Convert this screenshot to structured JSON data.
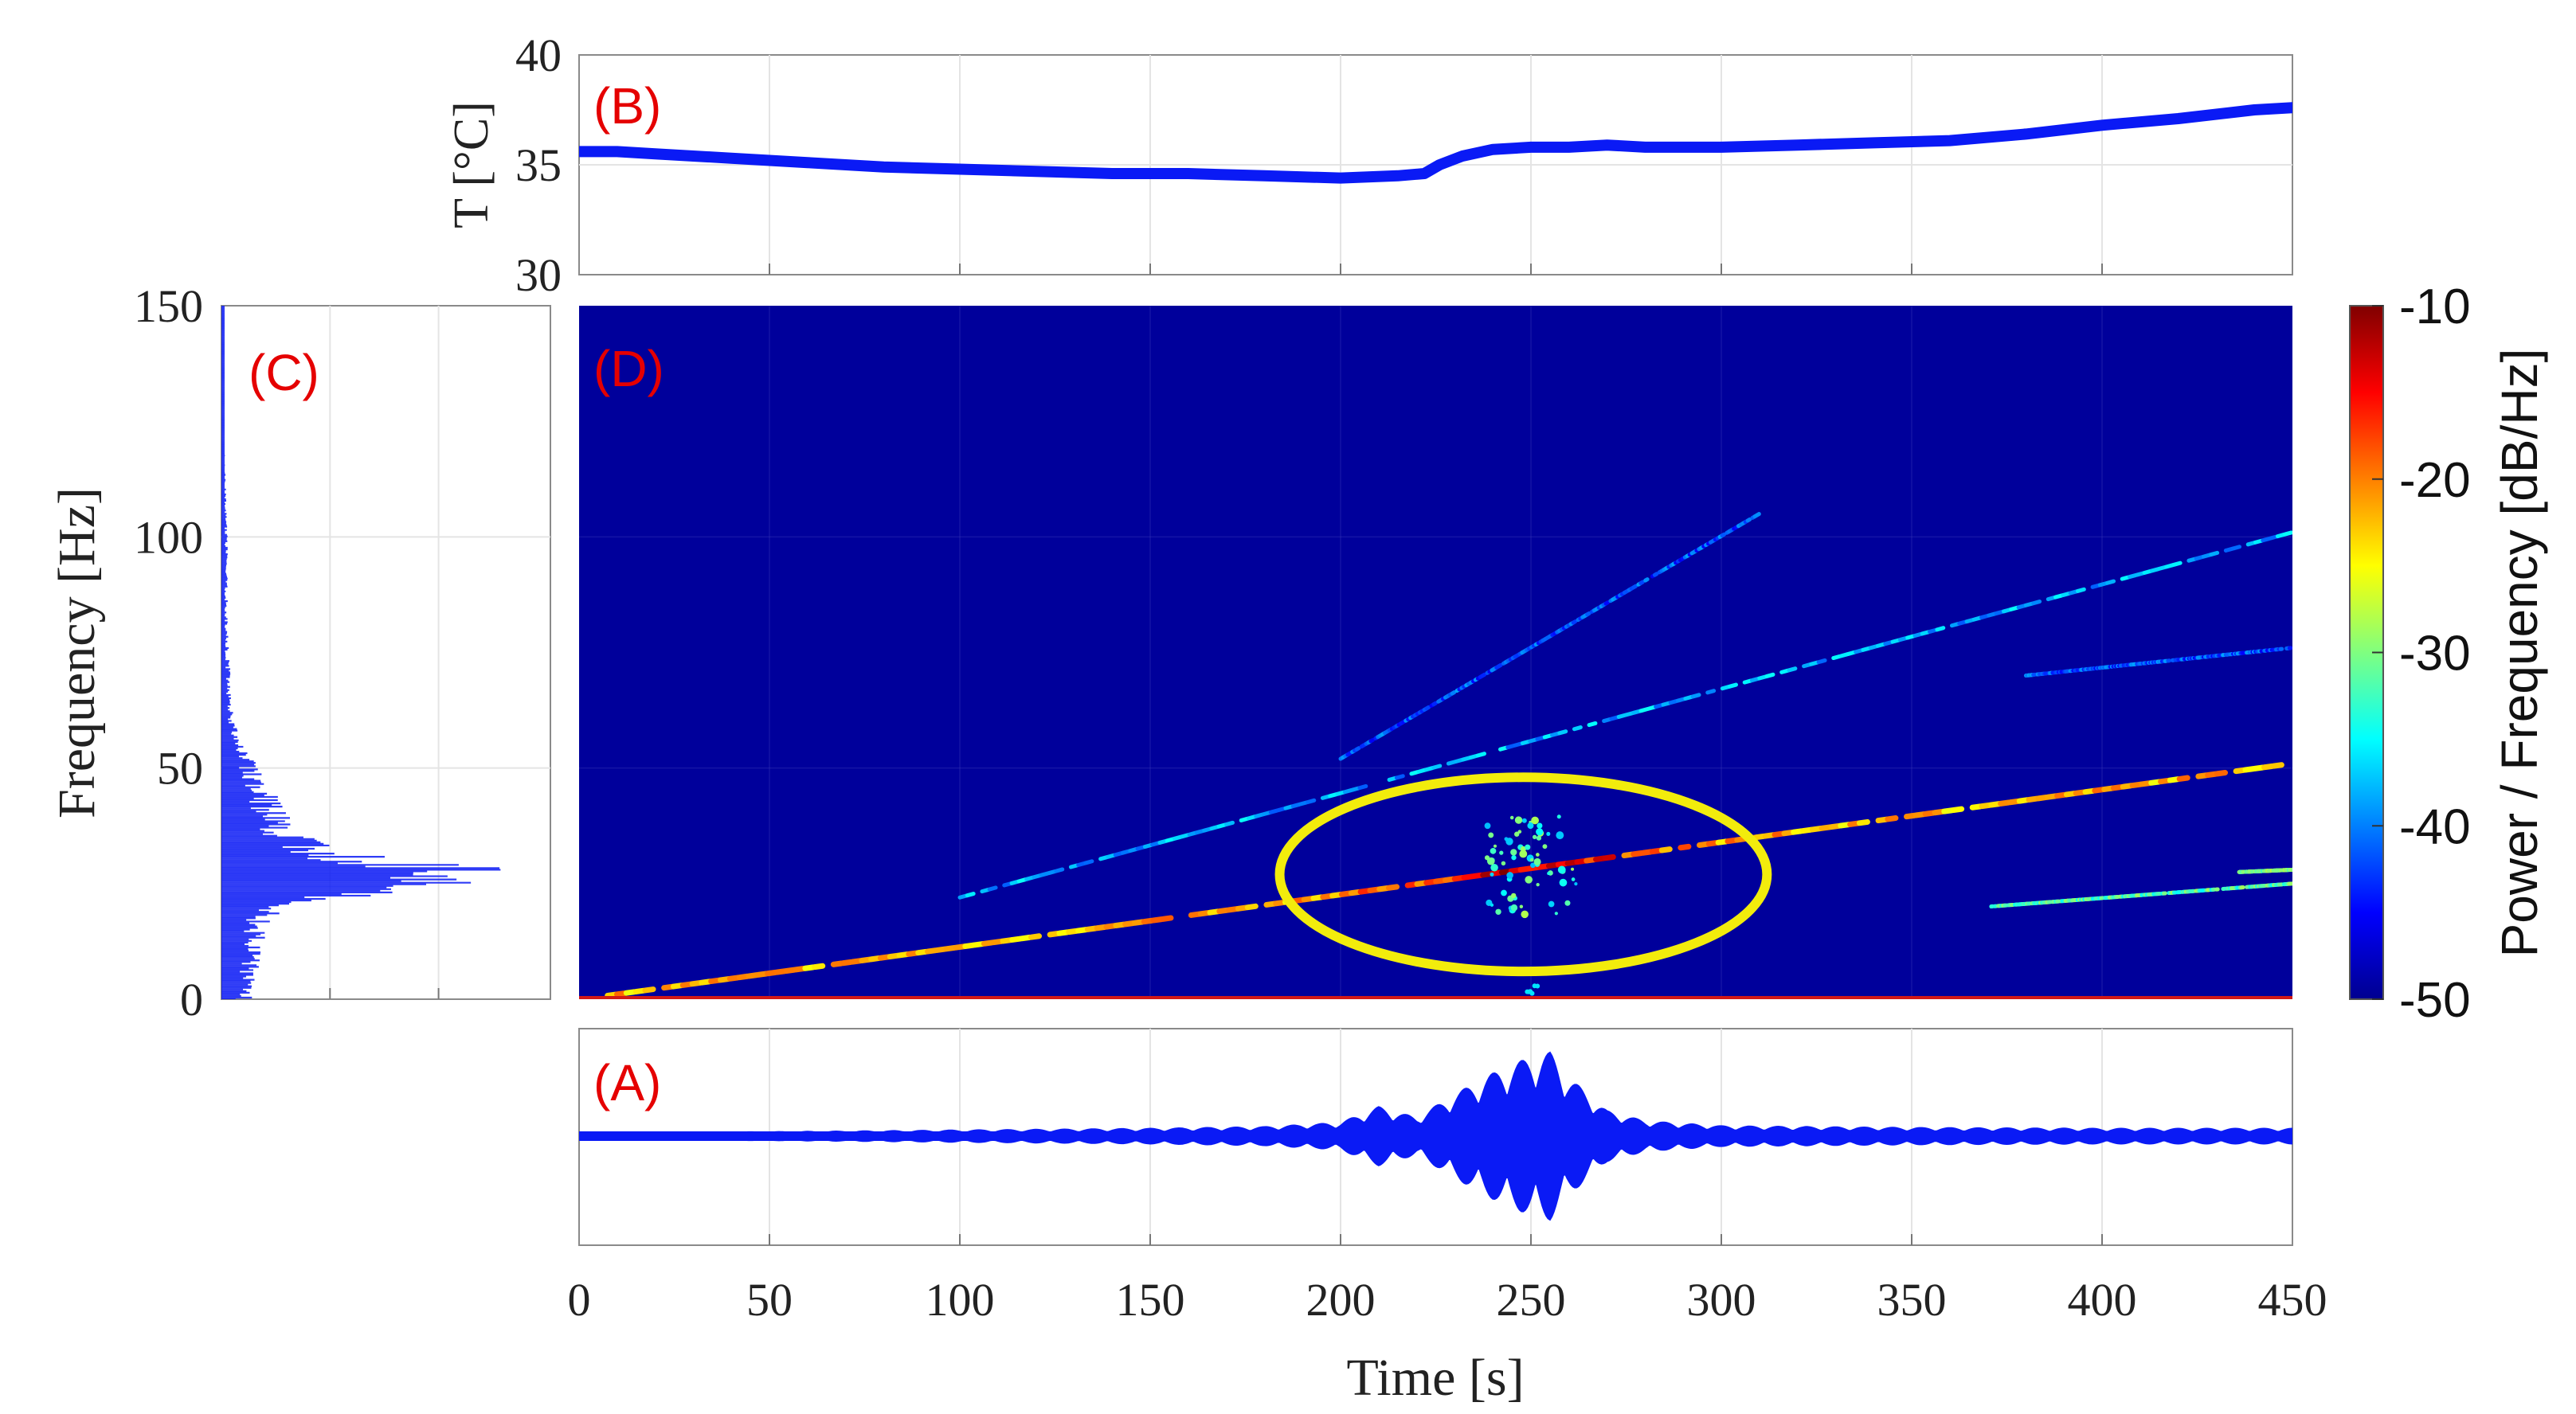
{
  "chart_data": [
    {
      "id": "B",
      "panel_label": "(B)",
      "type": "line",
      "ylabel": "T [°C]",
      "yticks": [
        "30",
        "35",
        "40"
      ],
      "ylim": [
        30,
        40
      ],
      "xlim": [
        0,
        450
      ],
      "x": [
        0,
        10,
        20,
        30,
        40,
        60,
        80,
        100,
        120,
        140,
        160,
        180,
        200,
        215,
        222,
        226,
        232,
        240,
        250,
        260,
        270,
        280,
        300,
        320,
        340,
        360,
        380,
        400,
        420,
        440,
        450
      ],
      "y": [
        35.6,
        35.6,
        35.5,
        35.4,
        35.3,
        35.1,
        34.9,
        34.8,
        34.7,
        34.6,
        34.6,
        34.5,
        34.4,
        34.5,
        34.6,
        35.0,
        35.4,
        35.7,
        35.8,
        35.8,
        35.9,
        35.8,
        35.8,
        35.9,
        36.0,
        36.1,
        36.4,
        36.8,
        37.1,
        37.5,
        37.6
      ],
      "color": "#0a1af5"
    },
    {
      "id": "C",
      "panel_label": "(C)",
      "type": "area",
      "ylabel": "Frequency [Hz]",
      "yticks": [
        "0",
        "50",
        "100",
        "150"
      ],
      "ylim": [
        0,
        150
      ],
      "freq": [
        0,
        5,
        10,
        15,
        18,
        20,
        22,
        24,
        25,
        26,
        27,
        28,
        29,
        30,
        32,
        35,
        40,
        45,
        50,
        55,
        60,
        70,
        80,
        100,
        120,
        150
      ],
      "amplitude": [
        0.1,
        0.12,
        0.13,
        0.15,
        0.17,
        0.25,
        0.45,
        0.7,
        0.8,
        0.9,
        0.95,
        1.0,
        0.85,
        0.6,
        0.4,
        0.3,
        0.22,
        0.17,
        0.12,
        0.07,
        0.04,
        0.03,
        0.02,
        0.02,
        0.01,
        0.01
      ],
      "color": "#0a1af5"
    },
    {
      "id": "D",
      "panel_label": "(D)",
      "type": "heatmap",
      "ylim": [
        0,
        150
      ],
      "xlim": [
        0,
        450
      ],
      "colorbar_label": "Power / Frequency [dB/Hz]",
      "colorbar_ticks": [
        "-10",
        "-20",
        "-30",
        "-40",
        "-50"
      ],
      "colorbar_range": [
        -50,
        -10
      ],
      "harmonic_lines": [
        {
          "t": [
            5,
            450
          ],
          "f": [
            0.5,
            51
          ],
          "level": -22
        },
        {
          "t": [
            100,
            450
          ],
          "f": [
            22,
            101
          ],
          "level": -38
        },
        {
          "t": [
            380,
            450
          ],
          "f": [
            70,
            76
          ],
          "level": -42
        },
        {
          "t": [
            200,
            310
          ],
          "f": [
            52,
            105
          ],
          "level": -42
        },
        {
          "t": [
            370,
            450
          ],
          "f": [
            20,
            25
          ],
          "level": -32
        },
        {
          "t": [
            436,
            450
          ],
          "f": [
            27.5,
            28
          ],
          "level": -30
        }
      ],
      "highlight": {
        "center_t": 248,
        "center_f": 27,
        "radius_t": 64,
        "radius_f": 21,
        "color": "#f2ec0c"
      }
    },
    {
      "id": "A",
      "panel_label": "(A)",
      "type": "line",
      "xlabel": "Time [s]",
      "xticks": [
        "0",
        "50",
        "100",
        "150",
        "200",
        "250",
        "300",
        "350",
        "400",
        "450"
      ],
      "xlim": [
        0,
        450
      ],
      "envelope_t": [
        0,
        50,
        100,
        150,
        180,
        200,
        210,
        220,
        230,
        240,
        250,
        255,
        260,
        270,
        280,
        300,
        350,
        400,
        450
      ],
      "envelope_a": [
        0.04,
        0.05,
        0.07,
        0.09,
        0.11,
        0.16,
        0.35,
        0.22,
        0.5,
        0.75,
        0.95,
        1.0,
        0.7,
        0.3,
        0.18,
        0.12,
        0.1,
        0.09,
        0.09
      ],
      "color": "#0a1af5"
    }
  ]
}
